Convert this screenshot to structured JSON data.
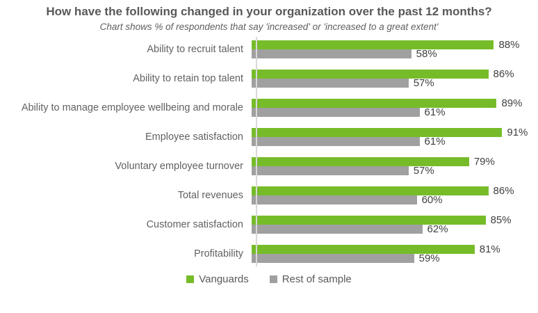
{
  "header": {
    "title": "How have the following changed in your organization over the past 12 months?",
    "subtitle": "Chart shows % of respondents that say 'increased' or 'increased to a great extent'"
  },
  "chart_data": {
    "type": "bar",
    "orientation": "horizontal",
    "title": "How have the following changed in your organization over the past 12 months?",
    "subtitle": "Chart shows % of respondents that say 'increased' or 'increased to a great extent'",
    "categories": [
      "Ability to recruit talent",
      "Ability to retain top talent",
      "Ability to manage employee wellbeing and morale",
      "Employee satisfaction",
      "Voluntary employee turnover",
      "Total revenues",
      "Customer satisfaction",
      "Profitability"
    ],
    "series": [
      {
        "name": "Vanguards",
        "color": "#76bc29",
        "values": [
          88,
          86,
          89,
          91,
          79,
          86,
          85,
          81
        ]
      },
      {
        "name": "Rest of sample",
        "color": "#a0a0a0",
        "values": [
          58,
          57,
          61,
          61,
          57,
          60,
          62,
          59
        ]
      }
    ],
    "value_suffix": "%",
    "xlim": [
      0,
      100
    ],
    "grid": false,
    "legend_position": "bottom",
    "colors": {
      "axis_line": "#d9d9d9",
      "title_text": "#57585a",
      "category_text": "#616161",
      "value_text": "#3f3f3f"
    }
  }
}
